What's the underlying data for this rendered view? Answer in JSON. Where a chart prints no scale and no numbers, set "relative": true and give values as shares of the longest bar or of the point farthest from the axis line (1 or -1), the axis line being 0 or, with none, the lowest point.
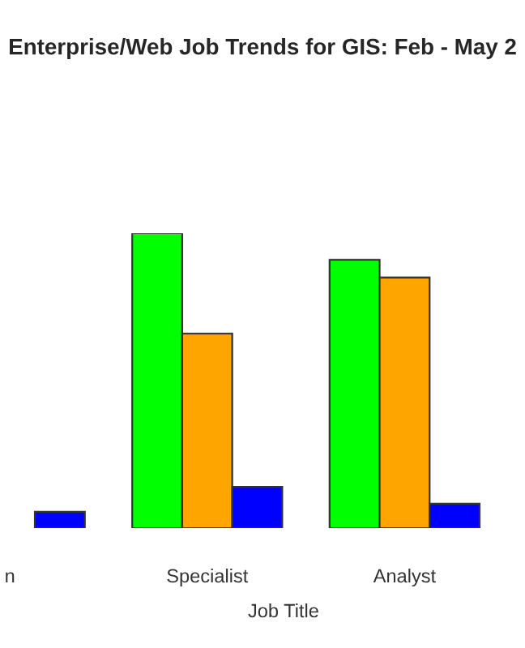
{
  "chart_data": {
    "type": "bar",
    "title": "Enterprise/Web Job Trends for GIS: Feb - May 2",
    "xlabel": "Job Title",
    "relative": true,
    "categories": [
      "n",
      "Specialist",
      "Analyst"
    ],
    "series": [
      {
        "color": "#00ff00",
        "values": [
          null,
          1,
          0.91
        ]
      },
      {
        "color": "#ffa500",
        "values": [
          null,
          0.66,
          0.85
        ]
      },
      {
        "color": "#0000ff",
        "values": [
          0.055,
          0.14,
          0.083
        ]
      }
    ],
    "grid": false,
    "legend": false
  }
}
